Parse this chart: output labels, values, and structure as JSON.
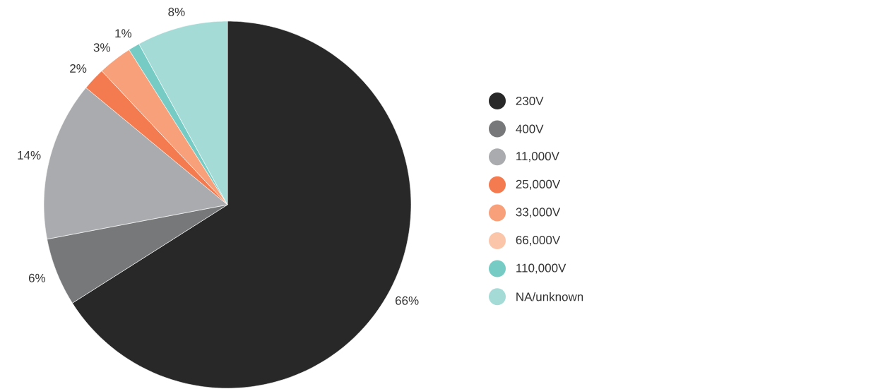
{
  "chart_data": {
    "type": "pie",
    "categories": [
      "230V",
      "400V",
      "11,000V",
      "25,000V",
      "33,000V",
      "66,000V",
      "110,000V",
      "NA/unknown"
    ],
    "values": [
      66,
      6,
      14,
      2,
      3,
      0,
      1,
      8
    ],
    "value_labels": [
      "66%",
      "6%",
      "14%",
      "2%",
      "3%",
      null,
      "1%",
      "8%"
    ],
    "colors": [
      "#282828",
      "#77787a",
      "#aaabae",
      "#f47b4f",
      "#f7a07a",
      "#fbc5aa",
      "#76ccc4",
      "#a5dbd6"
    ],
    "legend": "right"
  }
}
